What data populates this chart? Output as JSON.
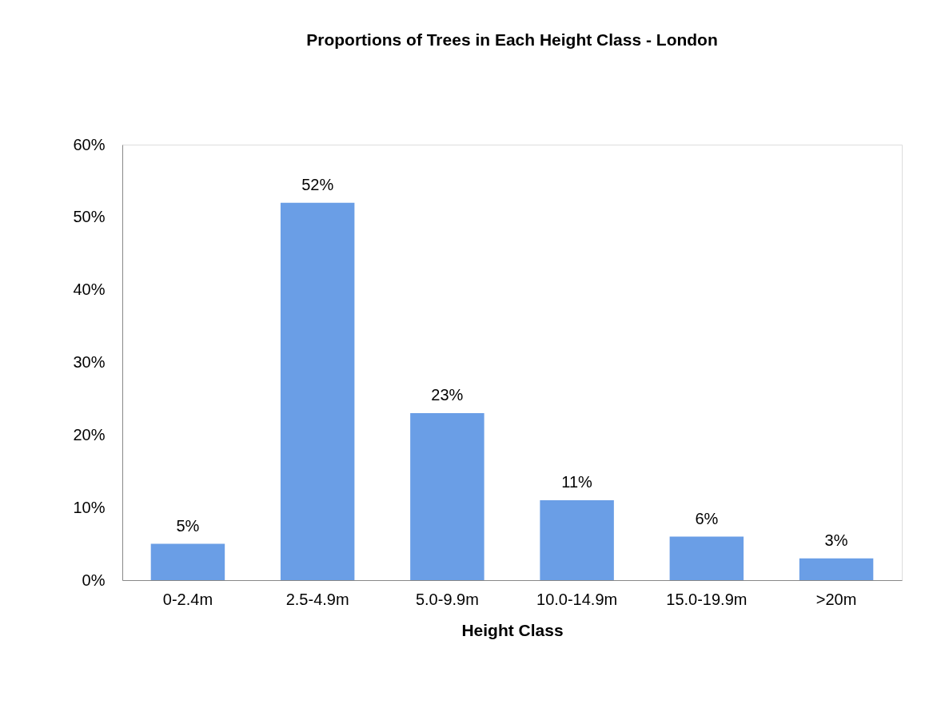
{
  "chart_data": {
    "type": "bar",
    "title": "Proportions of Trees in Each Height Class - London",
    "xlabel": "Height Class",
    "categories": [
      "0-2.4m",
      "2.5-4.9m",
      "5.0-9.9m",
      "10.0-14.9m",
      "15.0-19.9m",
      ">20m"
    ],
    "values": [
      5,
      52,
      23,
      11,
      6,
      3
    ],
    "value_labels": [
      "5%",
      "52%",
      "23%",
      "11%",
      "6%",
      "3%"
    ],
    "color": "#6a9ee6",
    "ylim": [
      0,
      60
    ],
    "yticks": [
      {
        "value": 0,
        "label": "0%"
      },
      {
        "value": 10,
        "label": "10%"
      },
      {
        "value": 20,
        "label": "20%"
      },
      {
        "value": 30,
        "label": "30%"
      },
      {
        "value": 40,
        "label": "40%"
      },
      {
        "value": 50,
        "label": "50%"
      },
      {
        "value": 60,
        "label": "60%"
      }
    ],
    "grid": false
  }
}
